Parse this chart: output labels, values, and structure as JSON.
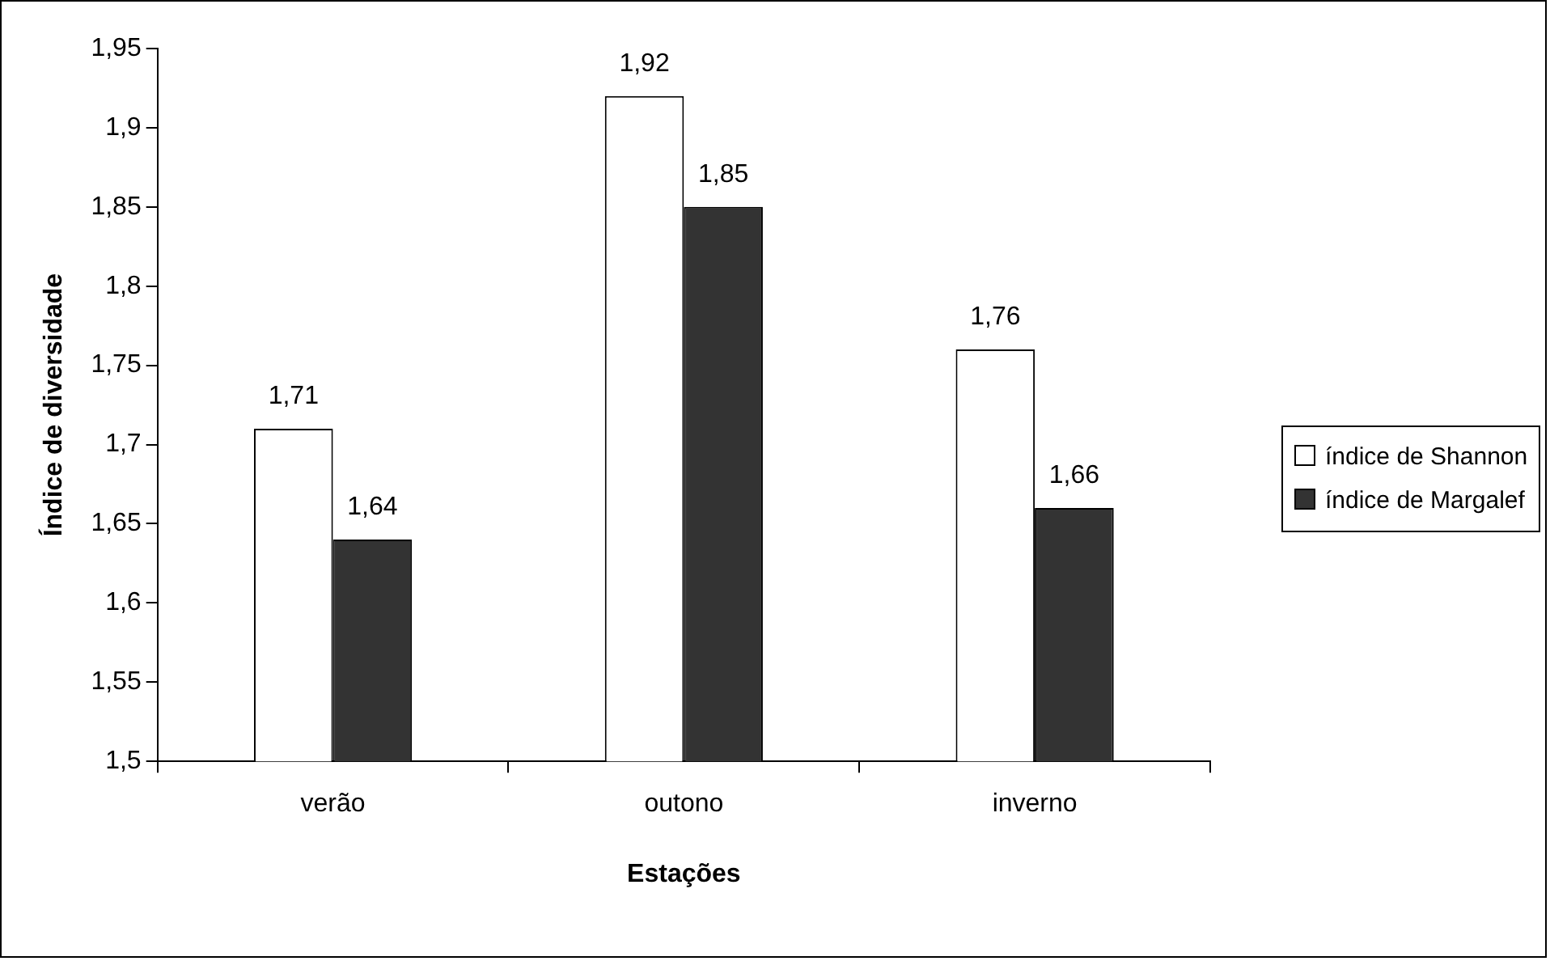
{
  "chart_data": {
    "type": "bar",
    "xlabel": "Estações",
    "ylabel": "Índice de diversidade",
    "categories": [
      "verão",
      "outono",
      "inverno"
    ],
    "series": [
      {
        "name": "índice de Shannon",
        "color": "#ffffff",
        "values": [
          1.71,
          1.92,
          1.76
        ],
        "value_labels": [
          "1,71",
          "1,92",
          "1,76"
        ]
      },
      {
        "name": "índice de Margalef",
        "color": "#333333",
        "values": [
          1.64,
          1.85,
          1.66
        ],
        "value_labels": [
          "1,64",
          "1,85",
          "1,66"
        ]
      }
    ],
    "ylim": [
      1.5,
      1.95
    ],
    "yticks": [
      {
        "value": 1.5,
        "label": "1,5"
      },
      {
        "value": 1.55,
        "label": "1,55"
      },
      {
        "value": 1.6,
        "label": "1,6"
      },
      {
        "value": 1.65,
        "label": "1,65"
      },
      {
        "value": 1.7,
        "label": "1,7"
      },
      {
        "value": 1.75,
        "label": "1,75"
      },
      {
        "value": 1.8,
        "label": "1,8"
      },
      {
        "value": 1.85,
        "label": "1,85"
      },
      {
        "value": 1.9,
        "label": "1,9"
      },
      {
        "value": 1.95,
        "label": "1,95"
      }
    ],
    "grid": false,
    "legend": "right"
  }
}
